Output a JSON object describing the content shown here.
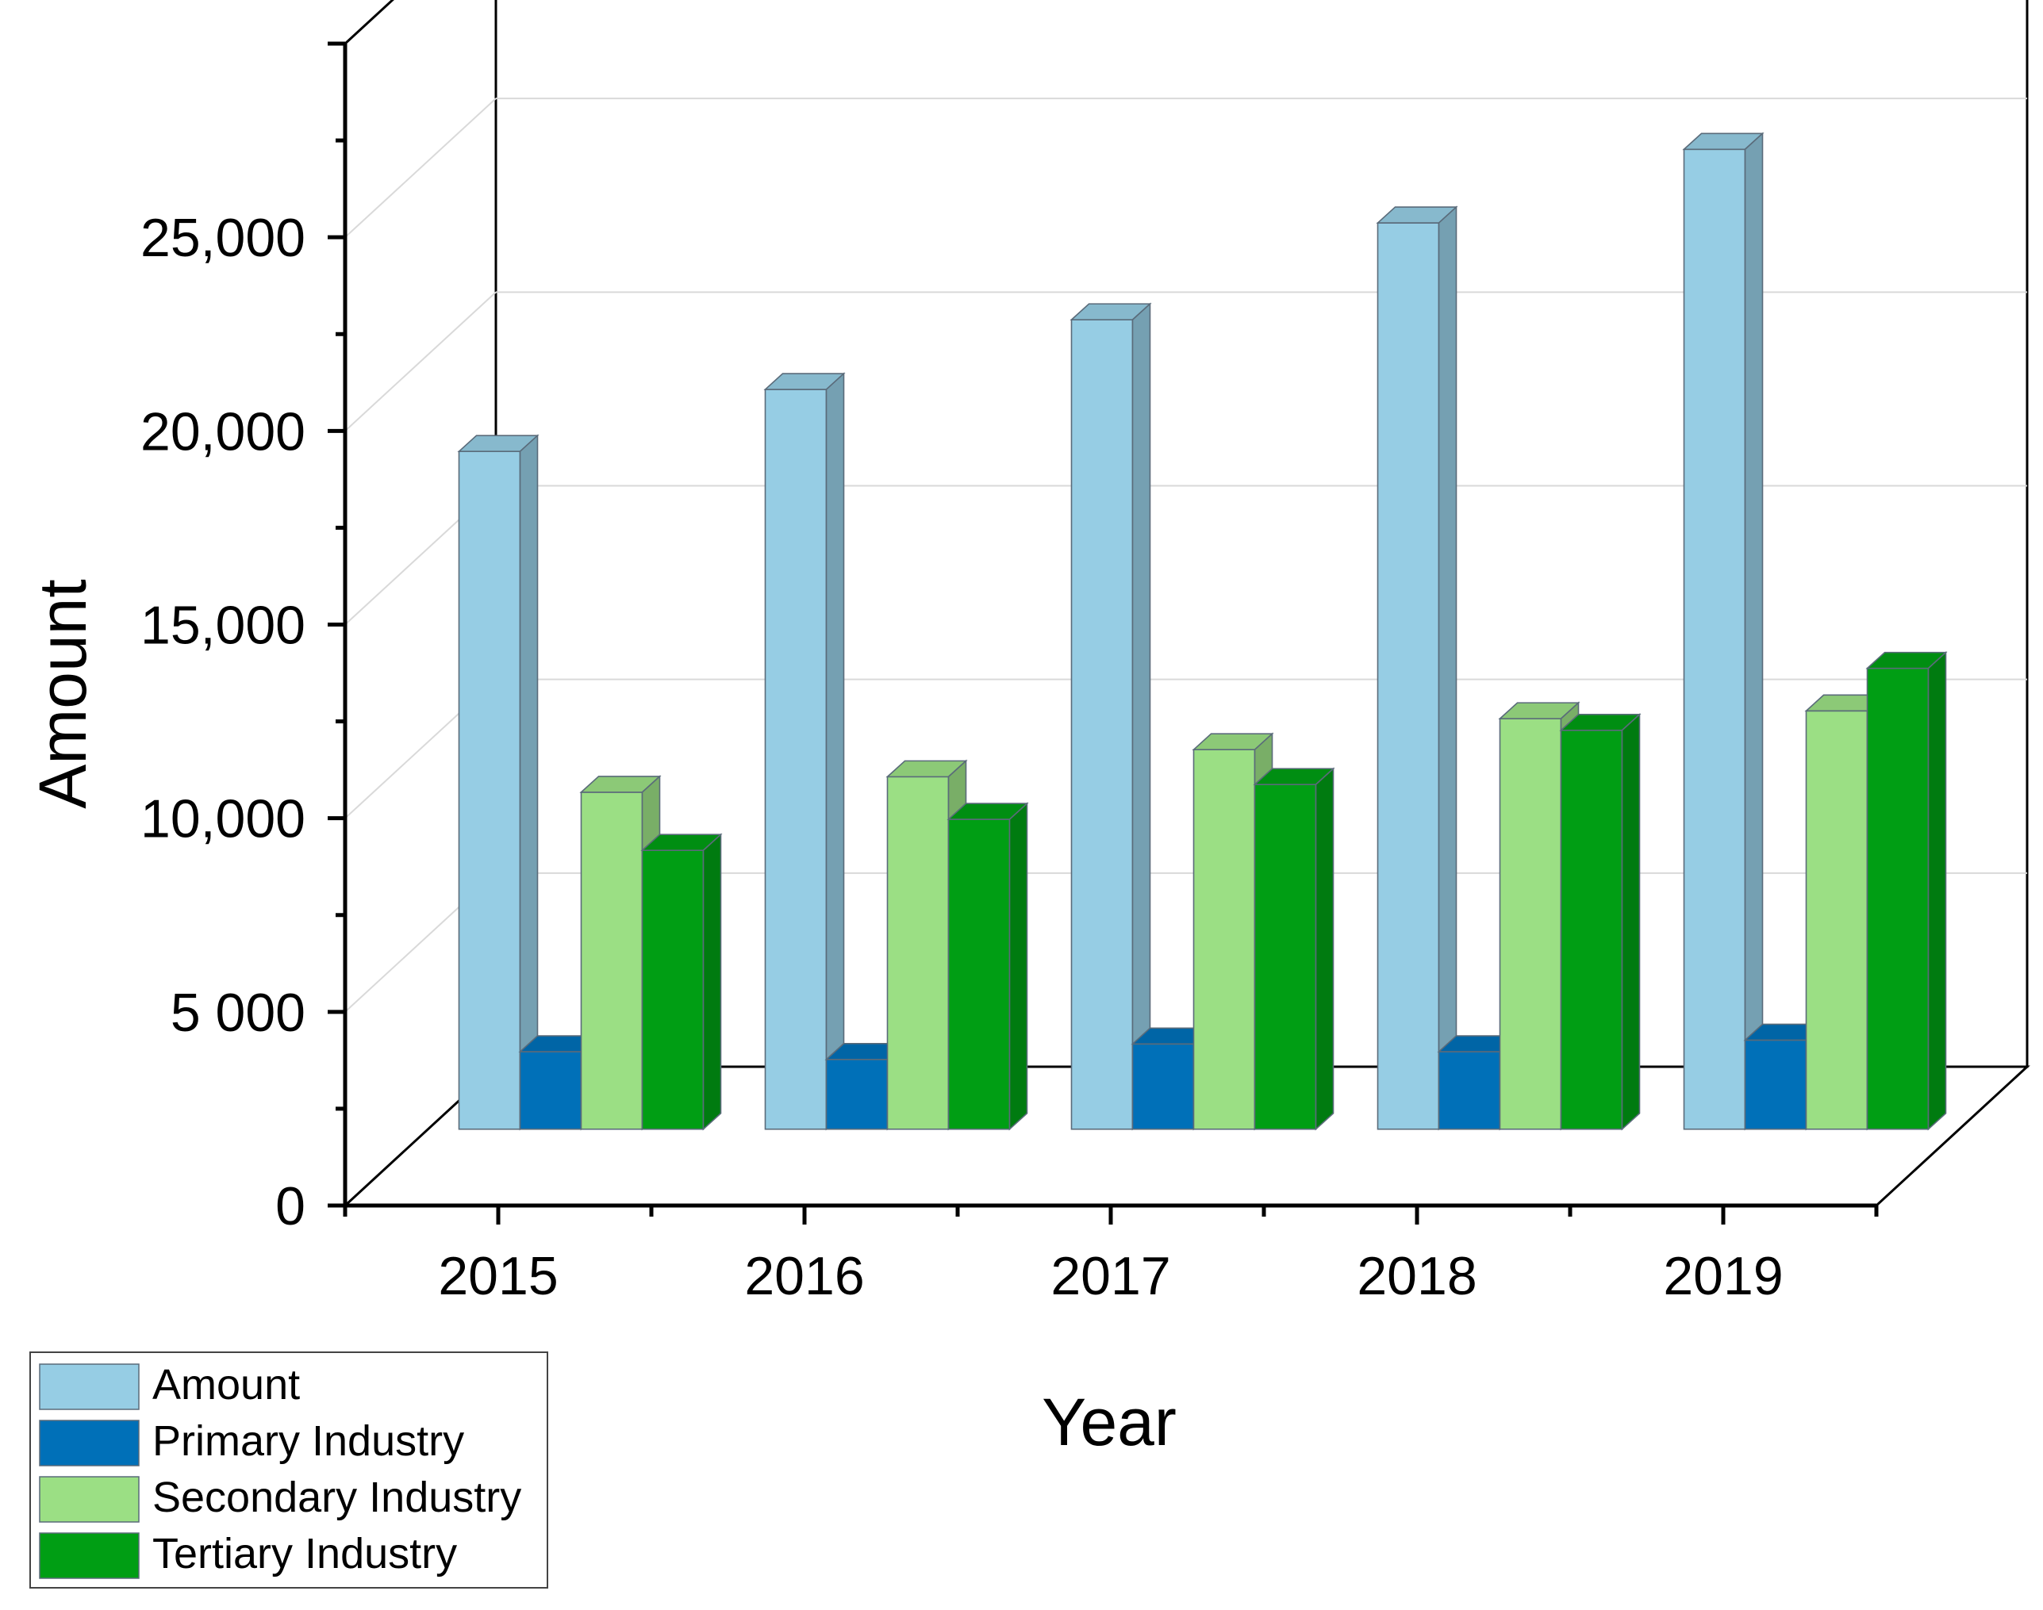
{
  "chart_data": {
    "type": "bar",
    "style": "3d-clustered",
    "title": "",
    "xlabel": "Year",
    "ylabel": "Amount",
    "categories": [
      "2015",
      "2016",
      "2017",
      "2018",
      "2019"
    ],
    "ylim": [
      0,
      30000
    ],
    "y_ticks": [
      0,
      5000,
      10000,
      15000,
      20000,
      25000
    ],
    "y_tick_labels": [
      "0",
      "5 000",
      "10,000",
      "15,000",
      "20,000",
      "25,000"
    ],
    "grid": true,
    "legend_position": "bottom-left",
    "series": [
      {
        "name": "Amount",
        "color": "#96cde4",
        "values": [
          17500,
          19100,
          20900,
          23400,
          25300
        ]
      },
      {
        "name": "Primary Industry",
        "color": "#0070b8",
        "values": [
          2000,
          1800,
          2200,
          2000,
          2300
        ]
      },
      {
        "name": "Secondary Industry",
        "color": "#9bdf84",
        "values": [
          8700,
          9100,
          9800,
          10600,
          10800
        ]
      },
      {
        "name": "Tertiary Industry",
        "color": "#009e14",
        "values": [
          7200,
          8000,
          8900,
          10300,
          11900
        ]
      }
    ]
  }
}
